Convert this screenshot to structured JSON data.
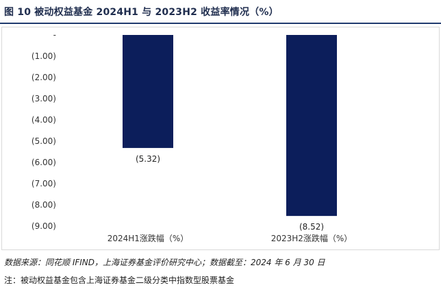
{
  "header": {
    "title": "图 10 被动权益基金 2024H1 与 2023H2 收益率情况（%）"
  },
  "footer": {
    "source": "数据来源：同花顺 IFIND，上海证券基金评价研究中心；数据截至：2024 年 6 月 30 日",
    "note": "注：被动权益基金包含上海证券基金二级分类中指数型股票基金"
  },
  "chart_data": {
    "type": "bar",
    "title": "",
    "categories": [
      "2024H1涨跌幅（%）",
      "2023H2涨跌幅（%）"
    ],
    "values": [
      -5.32,
      -8.52
    ],
    "data_labels": [
      "(5.32)",
      "(8.52)"
    ],
    "ylim": [
      -9,
      0
    ],
    "yticks": [
      0,
      -1,
      -2,
      -3,
      -4,
      -5,
      -6,
      -7,
      -8,
      -9
    ],
    "ytick_labels": [
      "-",
      "(1.00)",
      "(2.00)",
      "(3.00)",
      "(4.00)",
      "(5.00)",
      "(6.00)",
      "(7.00)",
      "(8.00)",
      "(9.00)"
    ],
    "bar_color": "#0c1e5b",
    "grid": false,
    "legend": "none"
  }
}
